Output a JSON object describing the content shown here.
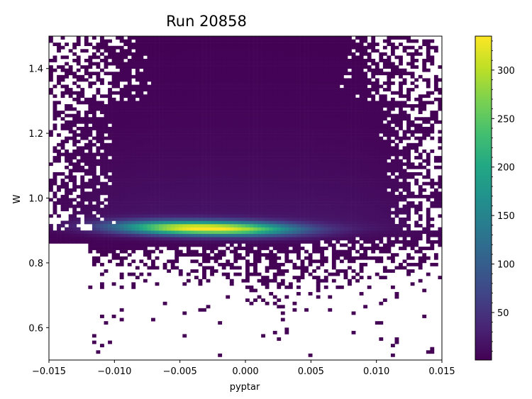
{
  "chart_data": {
    "type": "heatmap",
    "title": "Run 20858",
    "xlabel": "pyptar",
    "ylabel": "W",
    "xlim": [
      -0.015,
      0.015
    ],
    "ylim": [
      0.5,
      1.5
    ],
    "x_ticks": [
      -0.015,
      -0.01,
      -0.005,
      0.0,
      0.005,
      0.01,
      0.015
    ],
    "x_tick_labels": [
      "−0.015",
      "−0.010",
      "−0.005",
      "0.000",
      "0.005",
      "0.010",
      "0.015"
    ],
    "y_ticks": [
      0.6,
      0.8,
      1.0,
      1.2,
      1.4
    ],
    "y_tick_labels": [
      "0.6",
      "0.8",
      "1.0",
      "1.2",
      "1.4"
    ],
    "colormap": "viridis",
    "color_min": 1,
    "color_max": 335,
    "colorbar_ticks": [
      50,
      100,
      150,
      200,
      250,
      300
    ],
    "colorbar_tick_labels": [
      "50",
      "100",
      "150",
      "200",
      "250",
      "300"
    ],
    "bins": {
      "x": 100,
      "y": 100
    },
    "band": {
      "peak_w": 0.905,
      "peak_pyptar": -0.003,
      "peak_count": 330,
      "w_halfwidth": 0.015,
      "pyptar_extent": [
        -0.011,
        0.011
      ]
    },
    "grid": false
  }
}
